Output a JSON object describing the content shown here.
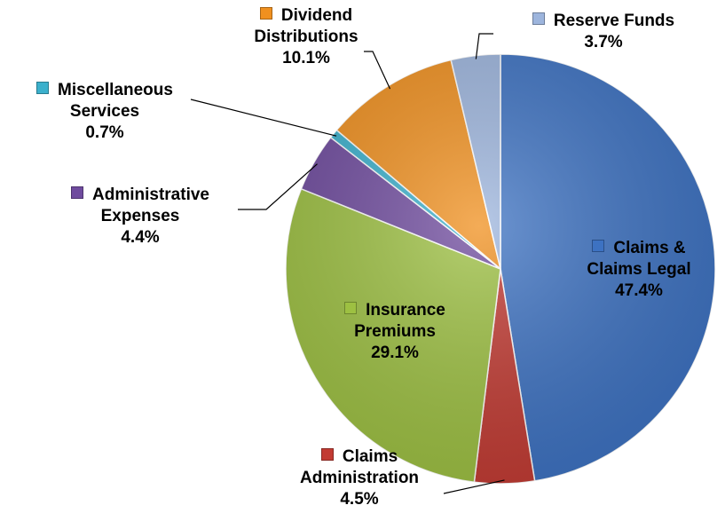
{
  "chart_data": {
    "type": "pie",
    "categories": [
      "Claims & Claims Legal",
      "Claims Administration",
      "Insurance Premiums",
      "Administrative Expenses",
      "Miscellaneous Services",
      "Dividend Distributions",
      "Reserve Funds"
    ],
    "values": [
      47.4,
      4.5,
      29.1,
      4.4,
      0.7,
      10.1,
      3.7
    ],
    "value_labels": [
      "47.4%",
      "4.5%",
      "29.1%",
      "4.4%",
      "0.7%",
      "10.1%",
      "3.7%"
    ],
    "colors": [
      "#3d72c2",
      "#c23b33",
      "#9dc042",
      "#6f4b9e",
      "#3bb0cc",
      "#f0901f",
      "#9db5dd"
    ]
  }
}
